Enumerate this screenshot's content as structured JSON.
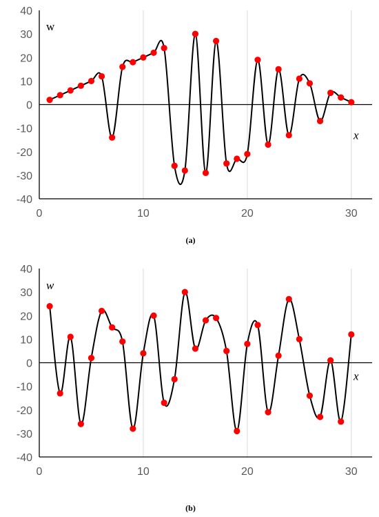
{
  "chart_data": [
    {
      "type": "scatter",
      "caption": "(a)",
      "ylabel": "w",
      "xlabel": "x",
      "xlim": [
        0,
        32
      ],
      "ylim": [
        -40,
        40
      ],
      "xticks": [
        0,
        10,
        20,
        30
      ],
      "yticks": [
        40,
        30,
        20,
        10,
        0,
        -10,
        -20,
        -30,
        -40
      ],
      "grid": "vertical",
      "smooth_curve": true,
      "colors": {
        "points": "#ff0000",
        "curve": "#000000"
      },
      "x": [
        1,
        2,
        3,
        4,
        5,
        6,
        7,
        8,
        9,
        10,
        11,
        12,
        13,
        14,
        15,
        16,
        17,
        18,
        19,
        20,
        21,
        22,
        23,
        24,
        25,
        26,
        27,
        28,
        29,
        30
      ],
      "y": [
        2,
        4,
        6,
        8,
        10,
        12,
        -14,
        16,
        18,
        20,
        22,
        24,
        -26,
        -28,
        30,
        -29,
        27,
        -25,
        -23,
        -21,
        19,
        -17,
        15,
        -13,
        11,
        9,
        -7,
        5,
        3,
        1
      ]
    },
    {
      "type": "scatter",
      "caption": "(b)",
      "ylabel": "w",
      "xlabel": "x",
      "xlim": [
        0,
        32
      ],
      "ylim": [
        -40,
        40
      ],
      "xticks": [
        0,
        10,
        20,
        30
      ],
      "yticks": [
        40,
        30,
        20,
        10,
        0,
        -10,
        -20,
        -30,
        -40
      ],
      "grid": "vertical",
      "smooth_curve": true,
      "colors": {
        "points": "#ff0000",
        "curve": "#000000"
      },
      "x": [
        1,
        2,
        3,
        4,
        5,
        6,
        7,
        8,
        9,
        10,
        11,
        12,
        13,
        14,
        15,
        16,
        17,
        18,
        19,
        20,
        21,
        22,
        23,
        24,
        25,
        26,
        27,
        28,
        29,
        30
      ],
      "y": [
        24,
        -13,
        11,
        -26,
        2,
        22,
        15,
        9,
        -28,
        4,
        20,
        -17,
        -7,
        30,
        6,
        18,
        19,
        5,
        -29,
        8,
        16,
        -21,
        3,
        27,
        10,
        -14,
        -23,
        1,
        -25,
        12
      ]
    }
  ]
}
